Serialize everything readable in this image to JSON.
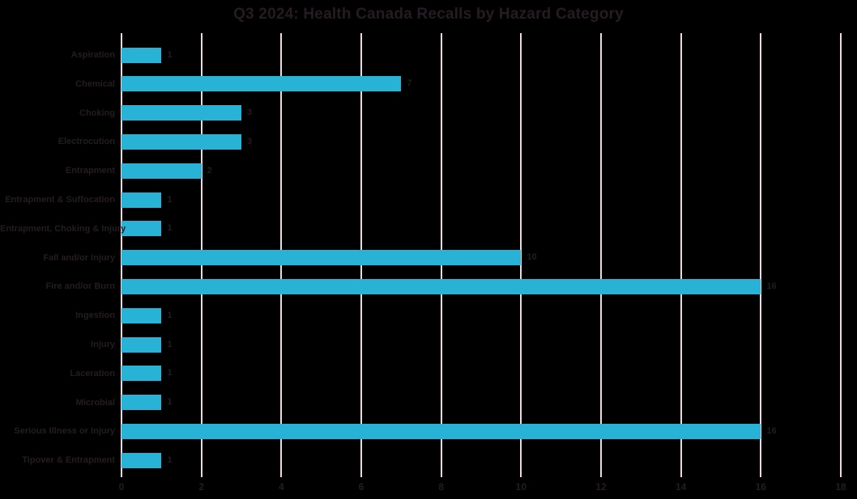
{
  "colors": {
    "background": "#000000",
    "bar": "#27b2d6",
    "gridline": "#ead9e3",
    "text": "#241c22"
  },
  "chart_data": {
    "type": "bar",
    "orientation": "horizontal",
    "title": "Q3 2024: Health Canada Recalls by Hazard Category",
    "categories": [
      "Aspiration",
      "Chemical",
      "Choking",
      "Electrocution",
      "Entrapment",
      "Entrapment & Suffocation",
      "Entrapment, Choking & Injury",
      "Fall and/or Injury",
      "Fire and/or Burn",
      "Ingestion",
      "Injury",
      "Laceration",
      "Microbial",
      "Serious Illness or Injury",
      "Tipover & Entrapment"
    ],
    "values": [
      1,
      7,
      3,
      3,
      2,
      1,
      1,
      10,
      16,
      1,
      1,
      1,
      1,
      16,
      1
    ],
    "data_labels": true,
    "xlabel": "",
    "ylabel": "",
    "xlim": [
      0,
      18
    ],
    "xticks": [
      0,
      2,
      4,
      6,
      8,
      10,
      12,
      14,
      16,
      18
    ],
    "grid": "vertical",
    "legend": "none"
  }
}
